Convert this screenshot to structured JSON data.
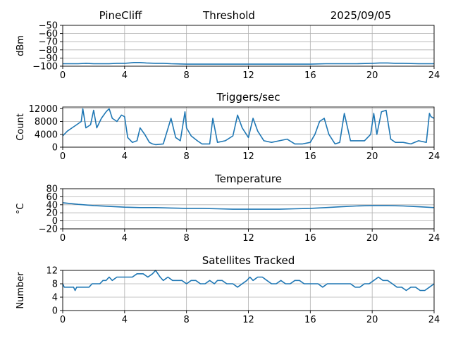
{
  "header": {
    "station": "PineCliff",
    "title": "Threshold",
    "date": "2025/09/05"
  },
  "colors": {
    "line": "#1f77b4",
    "grid": "#b0b0b0",
    "axis": "#000000"
  },
  "chart_data": [
    {
      "id": "threshold",
      "type": "line",
      "title": "",
      "xlabel": "",
      "ylabel": "dBm",
      "xlim": [
        0,
        24
      ],
      "ylim": [
        -100,
        -50
      ],
      "xticks": [
        0,
        4,
        8,
        12,
        16,
        20,
        24
      ],
      "yticks": [
        -100,
        -90,
        -80,
        -70,
        -60,
        -50
      ],
      "grid": true,
      "series": [
        {
          "x": [
            0,
            0.5,
            1,
            1.5,
            2,
            2.5,
            3,
            3.5,
            4,
            4.3,
            4.6,
            5,
            5.4,
            6,
            6.5,
            7,
            8,
            9,
            10,
            11,
            12,
            13,
            14,
            15,
            16,
            17,
            18,
            19,
            20,
            20.5,
            21,
            21.5,
            22,
            23,
            24
          ],
          "y": [
            -97,
            -97,
            -97,
            -96.5,
            -97,
            -97,
            -97,
            -96.5,
            -96.5,
            -96,
            -95.5,
            -95.5,
            -96,
            -96.5,
            -96.5,
            -97,
            -97.5,
            -97.5,
            -97.5,
            -97.5,
            -97.5,
            -97.5,
            -97.5,
            -97.5,
            -97.5,
            -97,
            -97,
            -97,
            -96.5,
            -96,
            -96,
            -96.5,
            -96.5,
            -97,
            -97
          ]
        }
      ]
    },
    {
      "id": "triggers",
      "type": "line",
      "title": "Triggers/sec",
      "xlabel": "",
      "ylabel": "Count",
      "xlim": [
        0,
        24
      ],
      "ylim": [
        0,
        12500
      ],
      "xticks": [
        0,
        4,
        8,
        12,
        16,
        20,
        24
      ],
      "yticks": [
        0,
        4000,
        8000,
        12000
      ],
      "grid": true,
      "series": [
        {
          "x": [
            0,
            0.3,
            0.6,
            0.9,
            1.2,
            1.3,
            1.5,
            1.8,
            2.0,
            2.2,
            2.5,
            2.8,
            3.0,
            3.2,
            3.5,
            3.8,
            4.0,
            4.2,
            4.5,
            4.8,
            5.0,
            5.3,
            5.6,
            5.8,
            6.0,
            6.5,
            7.0,
            7.3,
            7.6,
            7.9,
            8.0,
            8.3,
            8.7,
            9.0,
            9.5,
            9.7,
            10.0,
            10.5,
            11.0,
            11.3,
            11.6,
            12.0,
            12.3,
            12.6,
            13.0,
            13.5,
            14.0,
            14.5,
            15.0,
            15.5,
            16.0,
            16.3,
            16.6,
            16.9,
            17.2,
            17.6,
            17.9,
            18.2,
            18.6,
            19.0,
            19.5,
            19.9,
            20.1,
            20.3,
            20.6,
            20.9,
            21.2,
            21.5,
            22.0,
            22.5,
            23.0,
            23.5,
            23.7,
            23.8,
            24.0
          ],
          "y": [
            3500,
            5000,
            6000,
            7000,
            8000,
            12000,
            6000,
            7000,
            11500,
            6000,
            9000,
            11000,
            12000,
            9000,
            8000,
            10000,
            9500,
            3000,
            1500,
            2000,
            6000,
            4000,
            1500,
            1000,
            800,
            1000,
            9000,
            3000,
            2000,
            11000,
            6000,
            3500,
            2000,
            1000,
            1000,
            9000,
            1500,
            2000,
            3500,
            10000,
            6000,
            3000,
            9000,
            5000,
            2000,
            1500,
            2000,
            2500,
            1000,
            1000,
            1500,
            4000,
            8000,
            9000,
            4000,
            1000,
            1500,
            10500,
            2000,
            2000,
            2000,
            4000,
            10500,
            4000,
            11000,
            11500,
            2500,
            1500,
            1500,
            1000,
            2000,
            1500,
            10500,
            9500,
            9000
          ]
        }
      ]
    },
    {
      "id": "temperature",
      "type": "line",
      "title": "Temperature",
      "xlabel": "",
      "ylabel": "°C",
      "xlim": [
        0,
        24
      ],
      "ylim": [
        -20,
        80
      ],
      "xticks": [
        0,
        4,
        8,
        12,
        16,
        20,
        24
      ],
      "yticks": [
        -20,
        0,
        20,
        40,
        60,
        80
      ],
      "grid": true,
      "series": [
        {
          "x": [
            0,
            0.5,
            1,
            2,
            3,
            4,
            5,
            6,
            7,
            8,
            9,
            10,
            11,
            12,
            13,
            14,
            15,
            16,
            17,
            18,
            19,
            20,
            21,
            22,
            23,
            24
          ],
          "y": [
            45,
            43,
            41,
            38,
            36,
            34,
            33,
            33,
            32,
            31,
            31,
            30,
            29,
            29,
            29,
            29,
            30,
            31,
            33,
            35,
            37,
            38,
            38,
            37,
            35,
            33
          ]
        }
      ]
    },
    {
      "id": "satellites",
      "type": "line",
      "title": "Satellites Tracked",
      "xlabel": "",
      "ylabel": "Number",
      "xlim": [
        0,
        24
      ],
      "ylim": [
        0,
        12
      ],
      "xticks": [
        0,
        4,
        8,
        12,
        16,
        20,
        24
      ],
      "yticks": [
        0,
        4,
        8,
        12
      ],
      "grid": true,
      "series": [
        {
          "x": [
            0,
            0.1,
            0.3,
            0.5,
            0.7,
            0.8,
            0.9,
            1.0,
            1.2,
            1.5,
            1.7,
            1.9,
            2.1,
            2.4,
            2.6,
            2.8,
            3.0,
            3.2,
            3.5,
            3.7,
            4.0,
            4.3,
            4.5,
            4.8,
            5.2,
            5.5,
            5.8,
            6.0,
            6.3,
            6.5,
            6.8,
            7.1,
            7.4,
            7.7,
            8.0,
            8.3,
            8.6,
            8.9,
            9.2,
            9.5,
            9.8,
            10.0,
            10.3,
            10.6,
            11.0,
            11.3,
            11.6,
            11.9,
            12.1,
            12.3,
            12.6,
            12.9,
            13.2,
            13.5,
            13.8,
            14.1,
            14.4,
            14.7,
            15.0,
            15.3,
            15.6,
            15.9,
            16.2,
            16.5,
            16.8,
            17.1,
            17.4,
            17.7,
            18.0,
            18.3,
            18.6,
            18.9,
            19.2,
            19.5,
            19.8,
            20.1,
            20.4,
            20.7,
            21.0,
            21.3,
            21.6,
            21.9,
            22.2,
            22.5,
            22.8,
            23.1,
            23.4,
            23.7,
            24.0
          ],
          "y": [
            8,
            7,
            7,
            7,
            7,
            6,
            7,
            7,
            7,
            7,
            7,
            8,
            8,
            8,
            9,
            9,
            10,
            9,
            10,
            10,
            10,
            10,
            10,
            11,
            11,
            10,
            11,
            12,
            10,
            9,
            10,
            9,
            9,
            9,
            8,
            9,
            9,
            8,
            8,
            9,
            8,
            9,
            9,
            8,
            8,
            7,
            8,
            9,
            10,
            9,
            10,
            10,
            9,
            8,
            8,
            9,
            8,
            8,
            9,
            9,
            8,
            8,
            8,
            8,
            7,
            8,
            8,
            8,
            8,
            8,
            8,
            7,
            7,
            8,
            8,
            9,
            10,
            9,
            9,
            8,
            7,
            7,
            6,
            7,
            7,
            6,
            6,
            7,
            8
          ]
        }
      ]
    }
  ]
}
